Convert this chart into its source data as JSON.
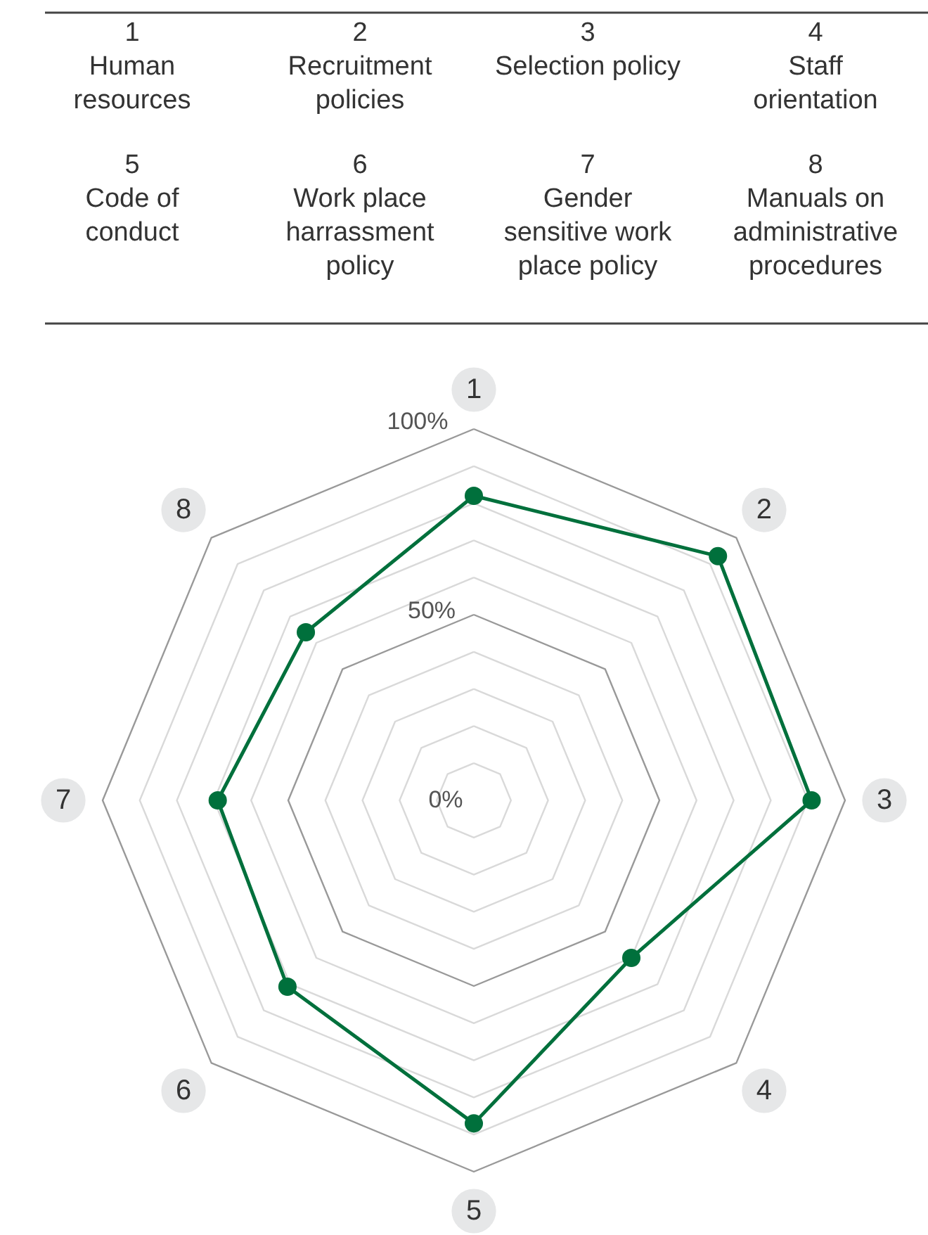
{
  "chart_data": {
    "type": "radar",
    "categories": [
      "1",
      "2",
      "3",
      "4",
      "5",
      "6",
      "7",
      "8"
    ],
    "series": [
      {
        "color": "#00703c",
        "values": [
          82,
          93,
          91,
          60,
          87,
          71,
          69,
          64
        ]
      }
    ],
    "ylim": [
      0,
      100
    ],
    "yticks": [
      {
        "value": 0,
        "label": "0%"
      },
      {
        "value": 50,
        "label": "50%"
      },
      {
        "value": 100,
        "label": "100%"
      }
    ],
    "grid": true,
    "marker": "circle",
    "line_style": "solid",
    "annotations": [
      "Human\nresources",
      "Recruitment\npolicies",
      "Selection policy",
      "Staff\norientation",
      "Code of\nconduct",
      "Work place\nharrassment\npolicy",
      "Gender\nsensitive work\nplace policy",
      "Manuals on\nadministrative\nprocedures"
    ]
  }
}
